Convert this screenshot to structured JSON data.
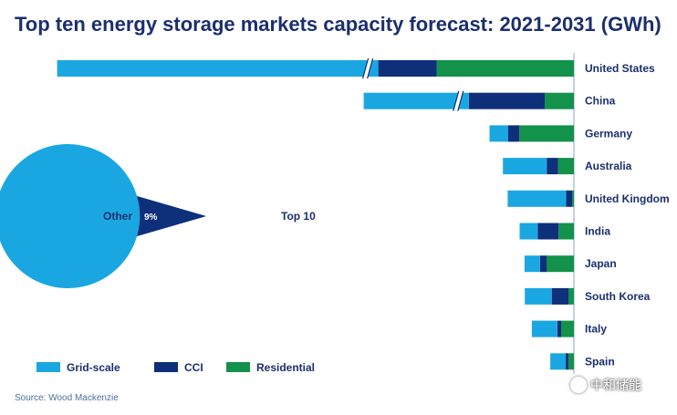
{
  "title": "Top ten energy storage markets capacity forecast: 2021-2031  (GWh)",
  "source": "Source: Wood Mackenzie",
  "watermark": "中和储能",
  "colors": {
    "grid_scale": "#1aa7e1",
    "cci": "#0e2f7a",
    "residential": "#12924a",
    "title": "#1b2f6e"
  },
  "chart_data": [
    {
      "type": "bar",
      "orientation": "horizontal-stacked",
      "title": "Top ten energy storage markets capacity forecast: 2021-2031  (GWh)",
      "categories": [
        "United States",
        "China",
        "Germany",
        "Australia",
        "United Kingdom",
        "India",
        "Japan",
        "South Korea",
        "Italy",
        "Spain"
      ],
      "series": [
        {
          "name": "Grid-scale",
          "values": [
            110,
            36,
            6.3,
            15,
            20,
            6.2,
            5.3,
            9.2,
            8.7,
            5.3
          ]
        },
        {
          "name": "CCI",
          "values": [
            20,
            26,
            3.9,
            3.9,
            2.1,
            7.2,
            2.3,
            5.8,
            1.3,
            1.0
          ]
        },
        {
          "name": "Residential",
          "values": [
            47,
            10,
            18.7,
            5.4,
            0.6,
            5.2,
            9.3,
            1.8,
            4.4,
            1.8
          ]
        }
      ],
      "axis_break": {
        "categories": [
          "United States",
          "China"
        ],
        "note": "bars truncated with break marks"
      },
      "legend": {
        "placement": "bottom-left",
        "entries": [
          "Grid-scale",
          "CCI",
          "Residential"
        ]
      }
    },
    {
      "type": "pie",
      "slices": [
        {
          "label": "Top 10",
          "value": 91,
          "value_label": "91%"
        },
        {
          "label": "Other",
          "value": 9,
          "value_label": "9%"
        }
      ]
    }
  ]
}
